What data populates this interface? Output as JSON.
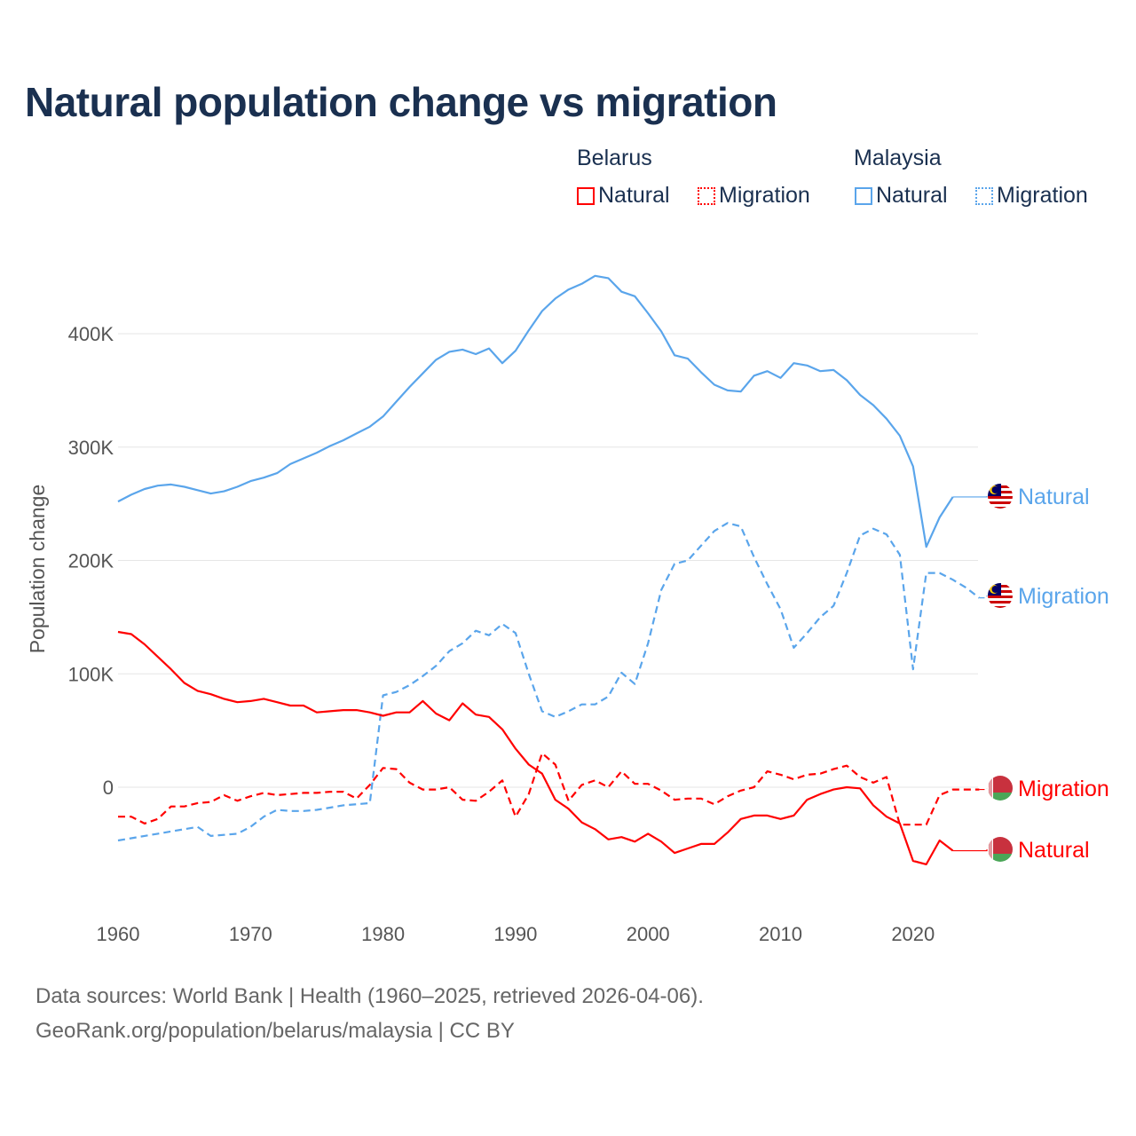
{
  "title": "Natural population change vs migration",
  "legend": {
    "groups": [
      {
        "name": "Belarus",
        "color": "#ff0000",
        "items": [
          "Natural",
          "Migration"
        ]
      },
      {
        "name": "Malaysia",
        "color": "#5aa5eb",
        "items": [
          "Natural",
          "Migration"
        ]
      }
    ]
  },
  "footer": {
    "line1": "Data sources: World Bank | Health (1960–2025, retrieved 2026-04-06).",
    "line2": "GeoRank.org/population/belarus/malaysia | CC BY"
  },
  "chart_data": {
    "type": "line",
    "title": "Natural population change vs migration",
    "xlabel": "",
    "ylabel": "Population change",
    "xlim": [
      1960,
      2025
    ],
    "ylim": [
      -100000,
      470000
    ],
    "x_ticks": [
      "1960",
      "1970",
      "1980",
      "1990",
      "2000",
      "2010",
      "2020"
    ],
    "y_ticks": [
      {
        "v": 0,
        "label": "0"
      },
      {
        "v": 100000,
        "label": "100K"
      },
      {
        "v": 200000,
        "label": "200K"
      },
      {
        "v": 300000,
        "label": "300K"
      },
      {
        "v": 400000,
        "label": "400K"
      }
    ],
    "grid": true,
    "start_year": 1960,
    "series": [
      {
        "name": "Natural",
        "country": "Malaysia",
        "color": "#5aa5eb",
        "dashed": false,
        "flag": "malaysia",
        "end_label": "Natural",
        "values": [
          252,
          258,
          263,
          266,
          267,
          265,
          262,
          259,
          261,
          265,
          270,
          273,
          277,
          285,
          290,
          295,
          301,
          306,
          312,
          318,
          327,
          340,
          353,
          365,
          377,
          384,
          386,
          382,
          387,
          374,
          385,
          403,
          420,
          431,
          439,
          444,
          451,
          449,
          437,
          433,
          418,
          402,
          381,
          378,
          366,
          355,
          350,
          349,
          363,
          367,
          361,
          374,
          372,
          367,
          368,
          359,
          346,
          337,
          325,
          310,
          283,
          212,
          238,
          256
        ]
      },
      {
        "name": "Migration",
        "country": "Malaysia",
        "color": "#5aa5eb",
        "dashed": true,
        "flag": "malaysia",
        "end_label": "Migration",
        "values": [
          -47,
          -45,
          -43,
          -41,
          -39,
          -37,
          -35,
          -43,
          -42,
          -41,
          -35,
          -26,
          -20,
          -21,
          -21,
          -20,
          -18,
          -16,
          -15,
          -14,
          81,
          84,
          90,
          98,
          107,
          120,
          127,
          138,
          134,
          144,
          136,
          100,
          67,
          62,
          67,
          73,
          73,
          80,
          101,
          91,
          127,
          174,
          197,
          200,
          213,
          226,
          233,
          230,
          203,
          179,
          157,
          123,
          136,
          150,
          160,
          189,
          222,
          228,
          223,
          205,
          104,
          189,
          189,
          183,
          176,
          167
        ]
      },
      {
        "name": "Migration",
        "country": "Belarus",
        "color": "#ff0000",
        "dashed": true,
        "flag": "belarus",
        "end_label": "Migration",
        "values": [
          -26,
          -26,
          -32,
          -28,
          -17,
          -17,
          -14,
          -13,
          -7,
          -12,
          -8,
          -5,
          -7,
          -6,
          -5,
          -5,
          -4,
          -4,
          -10,
          2,
          17,
          16,
          4,
          -2,
          -2,
          0,
          -11,
          -12,
          -4,
          6,
          -26,
          -6,
          30,
          20,
          -12,
          2,
          6,
          0,
          14,
          3,
          3,
          -3,
          -11,
          -10,
          -10,
          -15,
          -8,
          -3,
          0,
          14,
          11,
          7,
          11,
          12,
          16,
          19,
          9,
          4,
          9,
          -33,
          -33,
          -33,
          -7,
          -2,
          -2,
          -2
        ]
      },
      {
        "name": "Natural",
        "country": "Belarus",
        "color": "#ff0000",
        "dashed": false,
        "flag": "belarus",
        "end_label": "Natural",
        "values": [
          137,
          135,
          126,
          115,
          104,
          92,
          85,
          82,
          78,
          75,
          76,
          78,
          75,
          72,
          72,
          66,
          67,
          68,
          68,
          66,
          63,
          66,
          66,
          76,
          65,
          59,
          74,
          64,
          62,
          51,
          34,
          20,
          12,
          -11,
          -19,
          -31,
          -37,
          -46,
          -44,
          -48,
          -41,
          -48,
          -58,
          -54,
          -50,
          -50,
          -40,
          -28,
          -25,
          -25,
          -28,
          -25,
          -11,
          -6,
          -2,
          0,
          -1,
          -16,
          -26,
          -32,
          -65,
          -68,
          -47,
          -56
        ]
      }
    ],
    "value_unit": "thousands"
  }
}
